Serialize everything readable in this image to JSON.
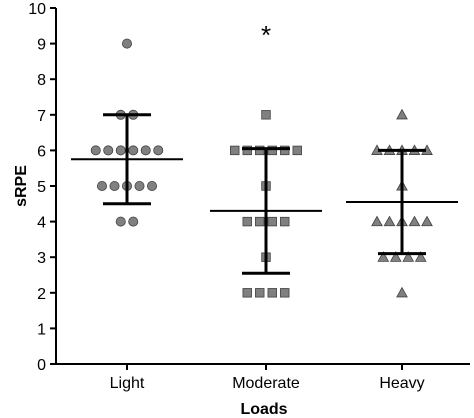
{
  "chart_data": {
    "type": "scatter",
    "title": "",
    "xlabel": "Loads",
    "ylabel": "sRPE",
    "ylim": [
      0,
      10
    ],
    "yticks": [
      "0",
      "1",
      "2",
      "3",
      "4",
      "5",
      "6",
      "7",
      "8",
      "9",
      "10"
    ],
    "categories": [
      "Light",
      "Moderate",
      "Heavy"
    ],
    "grid": false,
    "colors": {
      "marker": "#808080",
      "marker_stroke": "#404040",
      "line": "#000000"
    },
    "groups": [
      {
        "category": "Light",
        "marker": "circle",
        "values": [
          9,
          7,
          7,
          6,
          6,
          6,
          6,
          6,
          6,
          5,
          5,
          5,
          5,
          5,
          4,
          4
        ],
        "mean": 5.75,
        "error_low": 4.5,
        "error_high": 7.0,
        "annotation": ""
      },
      {
        "category": "Moderate",
        "marker": "square",
        "values": [
          7,
          6,
          6,
          6,
          6,
          6,
          6,
          5,
          4,
          4,
          4,
          4,
          3,
          2,
          2,
          2,
          2
        ],
        "mean": 4.3,
        "error_low": 2.55,
        "error_high": 6.05,
        "annotation": "*"
      },
      {
        "category": "Heavy",
        "marker": "triangle",
        "values": [
          7,
          6,
          6,
          6,
          6,
          6,
          5,
          4,
          4,
          4,
          4,
          4,
          3,
          3,
          3,
          3,
          2
        ],
        "mean": 4.55,
        "error_low": 3.1,
        "error_high": 6.0,
        "annotation": ""
      }
    ]
  }
}
